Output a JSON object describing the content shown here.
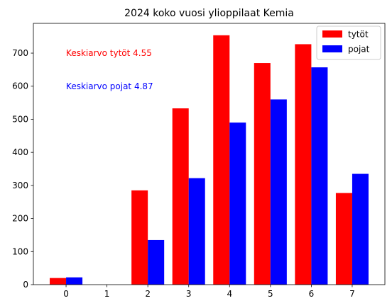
{
  "chart_data": {
    "type": "bar",
    "title": "2024 koko vuosi ylioppilaat Kemia",
    "xlabel": "",
    "ylabel": "",
    "categories": [
      "0",
      "1",
      "2",
      "3",
      "4",
      "5",
      "6",
      "7"
    ],
    "series": [
      {
        "name": "tytöt",
        "color": "#ff0000",
        "values": [
          20,
          0,
          285,
          533,
          754,
          670,
          727,
          277
        ]
      },
      {
        "name": "pojat",
        "color": "#0000ff",
        "values": [
          22,
          0,
          135,
          322,
          490,
          560,
          657,
          335
        ]
      }
    ],
    "ylim": [
      0,
      790
    ],
    "yticks": [
      0,
      100,
      200,
      300,
      400,
      500,
      600,
      700
    ],
    "legend": "top-right",
    "grid": false,
    "annotations": [
      {
        "text": "Keskiarvo tytöt 4.55",
        "color": "#ff0000",
        "x": 0,
        "y": 700
      },
      {
        "text": "Keskiarvo pojat 4.87",
        "color": "#0000ff",
        "x": 0,
        "y": 600
      }
    ]
  }
}
